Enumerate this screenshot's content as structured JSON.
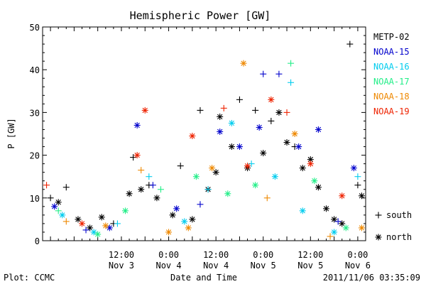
{
  "chart_data": {
    "type": "scatter",
    "title": "Hemispheric Power [GW]",
    "xlabel": "Date and Time",
    "ylabel": "P [GW]",
    "xlim": [
      "2011-11-02T16:00",
      "2011-11-06T02:00"
    ],
    "ylim": [
      0,
      50
    ],
    "yticks": [
      0,
      10,
      20,
      30,
      40,
      50
    ],
    "xticks": [
      {
        "time": "2011-11-03T12:00",
        "label1": "12:00",
        "label2": "Nov 3"
      },
      {
        "time": "2011-11-04T00:00",
        "label1": "0:00",
        "label2": "Nov 4"
      },
      {
        "time": "2011-11-04T12:00",
        "label1": "12:00",
        "label2": "Nov 4"
      },
      {
        "time": "2011-11-05T00:00",
        "label1": "0:00",
        "label2": "Nov 5"
      },
      {
        "time": "2011-11-05T12:00",
        "label1": "12:00",
        "label2": "Nov 5"
      },
      {
        "time": "2011-11-06T00:00",
        "label1": "0:00",
        "label2": "Nov 6"
      }
    ],
    "legend_position": "right",
    "marker_legend": [
      {
        "marker": "+",
        "label": "south"
      },
      {
        "marker": "*",
        "label": "north"
      }
    ],
    "series": [
      {
        "name": "METP-02",
        "color": "#000000",
        "points": [
          {
            "t": "2011-11-02T18:00",
            "v": 10,
            "m": "+"
          },
          {
            "t": "2011-11-02T20:00",
            "v": 9,
            "m": "*"
          },
          {
            "t": "2011-11-02T22:00",
            "v": 12.5,
            "m": "+"
          },
          {
            "t": "2011-11-03T01:00",
            "v": 5,
            "m": "*"
          },
          {
            "t": "2011-11-03T04:00",
            "v": 3,
            "m": "*"
          },
          {
            "t": "2011-11-03T07:00",
            "v": 5.5,
            "m": "*"
          },
          {
            "t": "2011-11-03T10:00",
            "v": 4,
            "m": "+"
          },
          {
            "t": "2011-11-03T14:00",
            "v": 11,
            "m": "*"
          },
          {
            "t": "2011-11-03T15:00",
            "v": 19.5,
            "m": "+"
          },
          {
            "t": "2011-11-03T17:00",
            "v": 12,
            "m": "*"
          },
          {
            "t": "2011-11-03T19:00",
            "v": 13,
            "m": "+"
          },
          {
            "t": "2011-11-03T21:00",
            "v": 10,
            "m": "*"
          },
          {
            "t": "2011-11-04T01:00",
            "v": 6,
            "m": "*"
          },
          {
            "t": "2011-11-04T03:00",
            "v": 17.5,
            "m": "+"
          },
          {
            "t": "2011-11-04T06:00",
            "v": 5,
            "m": "*"
          },
          {
            "t": "2011-11-04T08:00",
            "v": 30.5,
            "m": "+"
          },
          {
            "t": "2011-11-04T10:00",
            "v": 12,
            "m": "*"
          },
          {
            "t": "2011-11-04T12:00",
            "v": 16,
            "m": "*"
          },
          {
            "t": "2011-11-04T13:00",
            "v": 29,
            "m": "*"
          },
          {
            "t": "2011-11-04T16:00",
            "v": 22,
            "m": "*"
          },
          {
            "t": "2011-11-04T18:00",
            "v": 33,
            "m": "+"
          },
          {
            "t": "2011-11-04T20:00",
            "v": 17,
            "m": "*"
          },
          {
            "t": "2011-11-04T22:00",
            "v": 30.5,
            "m": "+"
          },
          {
            "t": "2011-11-05T00:00",
            "v": 20.5,
            "m": "*"
          },
          {
            "t": "2011-11-05T02:00",
            "v": 28,
            "m": "+"
          },
          {
            "t": "2011-11-05T04:00",
            "v": 30,
            "m": "*"
          },
          {
            "t": "2011-11-05T06:00",
            "v": 23,
            "m": "*"
          },
          {
            "t": "2011-11-05T08:00",
            "v": 22,
            "m": "+"
          },
          {
            "t": "2011-11-05T10:00",
            "v": 17,
            "m": "*"
          },
          {
            "t": "2011-11-05T12:00",
            "v": 19,
            "m": "*"
          },
          {
            "t": "2011-11-05T14:00",
            "v": 12.5,
            "m": "*"
          },
          {
            "t": "2011-11-05T16:00",
            "v": 7.5,
            "m": "*"
          },
          {
            "t": "2011-11-05T18:00",
            "v": 5,
            "m": "*"
          },
          {
            "t": "2011-11-05T20:00",
            "v": 4,
            "m": "*"
          },
          {
            "t": "2011-11-05T22:00",
            "v": 46,
            "m": "+"
          },
          {
            "t": "2011-11-06T00:00",
            "v": 13,
            "m": "+"
          },
          {
            "t": "2011-11-06T01:00",
            "v": 10.5,
            "m": "*"
          }
        ]
      },
      {
        "name": "NOAA-15",
        "color": "#0000cc",
        "points": [
          {
            "t": "2011-11-02T19:00",
            "v": 8,
            "m": "*"
          },
          {
            "t": "2011-11-03T03:00",
            "v": 2.5,
            "m": "+"
          },
          {
            "t": "2011-11-03T09:00",
            "v": 3,
            "m": "*"
          },
          {
            "t": "2011-11-03T16:00",
            "v": 27,
            "m": "*"
          },
          {
            "t": "2011-11-03T20:00",
            "v": 13,
            "m": "+"
          },
          {
            "t": "2011-11-04T02:00",
            "v": 7.5,
            "m": "*"
          },
          {
            "t": "2011-11-04T08:00",
            "v": 8.5,
            "m": "+"
          },
          {
            "t": "2011-11-04T13:00",
            "v": 25.5,
            "m": "*"
          },
          {
            "t": "2011-11-04T18:00",
            "v": 22,
            "m": "*"
          },
          {
            "t": "2011-11-04T23:00",
            "v": 26.5,
            "m": "*"
          },
          {
            "t": "2011-11-05T00:00",
            "v": 39,
            "m": "+"
          },
          {
            "t": "2011-11-05T04:00",
            "v": 39,
            "m": "+"
          },
          {
            "t": "2011-11-05T09:00",
            "v": 22,
            "m": "*"
          },
          {
            "t": "2011-11-05T14:00",
            "v": 26,
            "m": "*"
          },
          {
            "t": "2011-11-05T19:00",
            "v": 4.5,
            "m": "+"
          },
          {
            "t": "2011-11-05T23:00",
            "v": 17,
            "m": "*"
          }
        ]
      },
      {
        "name": "NOAA-16",
        "color": "#00ccee",
        "points": [
          {
            "t": "2011-11-02T21:00",
            "v": 6,
            "m": "*"
          },
          {
            "t": "2011-11-03T05:00",
            "v": 2,
            "m": "*"
          },
          {
            "t": "2011-11-03T11:00",
            "v": 4,
            "m": "+"
          },
          {
            "t": "2011-11-03T19:00",
            "v": 15,
            "m": "+"
          },
          {
            "t": "2011-11-04T04:00",
            "v": 4.5,
            "m": "*"
          },
          {
            "t": "2011-11-04T10:00",
            "v": 12,
            "m": "+"
          },
          {
            "t": "2011-11-04T16:00",
            "v": 27.5,
            "m": "*"
          },
          {
            "t": "2011-11-04T21:00",
            "v": 18,
            "m": "+"
          },
          {
            "t": "2011-11-05T03:00",
            "v": 15,
            "m": "*"
          },
          {
            "t": "2011-11-05T07:00",
            "v": 37,
            "m": "+"
          },
          {
            "t": "2011-11-05T10:00",
            "v": 7,
            "m": "*"
          },
          {
            "t": "2011-11-05T18:00",
            "v": 2,
            "m": "*"
          },
          {
            "t": "2011-11-06T00:00",
            "v": 15,
            "m": "+"
          }
        ]
      },
      {
        "name": "NOAA-17",
        "color": "#22ee88",
        "points": [
          {
            "t": "2011-11-02T20:00",
            "v": 7,
            "m": "+"
          },
          {
            "t": "2011-11-03T06:00",
            "v": 1.5,
            "m": "*"
          },
          {
            "t": "2011-11-03T13:00",
            "v": 7,
            "m": "*"
          },
          {
            "t": "2011-11-03T22:00",
            "v": 12,
            "m": "+"
          },
          {
            "t": "2011-11-04T07:00",
            "v": 15,
            "m": "*"
          },
          {
            "t": "2011-11-04T15:00",
            "v": 11,
            "m": "*"
          },
          {
            "t": "2011-11-04T22:00",
            "v": 13,
            "m": "*"
          },
          {
            "t": "2011-11-05T07:00",
            "v": 41.5,
            "m": "+"
          },
          {
            "t": "2011-11-05T13:00",
            "v": 14,
            "m": "*"
          },
          {
            "t": "2011-11-05T21:00",
            "v": 3,
            "m": "*"
          }
        ]
      },
      {
        "name": "NOAA-18",
        "color": "#ee8800",
        "points": [
          {
            "t": "2011-11-02T22:00",
            "v": 4.5,
            "m": "+"
          },
          {
            "t": "2011-11-03T08:00",
            "v": 3.5,
            "m": "*"
          },
          {
            "t": "2011-11-03T17:00",
            "v": 16.5,
            "m": "+"
          },
          {
            "t": "2011-11-04T00:00",
            "v": 2,
            "m": "*"
          },
          {
            "t": "2011-11-04T05:00",
            "v": 3,
            "m": "*"
          },
          {
            "t": "2011-11-04T11:00",
            "v": 17,
            "m": "*"
          },
          {
            "t": "2011-11-04T19:00",
            "v": 41.5,
            "m": "*"
          },
          {
            "t": "2011-11-05T01:00",
            "v": 10,
            "m": "+"
          },
          {
            "t": "2011-11-05T08:00",
            "v": 25,
            "m": "*"
          },
          {
            "t": "2011-11-05T17:00",
            "v": 1,
            "m": "+"
          },
          {
            "t": "2011-11-06T01:00",
            "v": 3,
            "m": "*"
          }
        ]
      },
      {
        "name": "NOAA-19",
        "color": "#ee2200",
        "points": [
          {
            "t": "2011-11-02T17:00",
            "v": 13,
            "m": "+"
          },
          {
            "t": "2011-11-03T02:00",
            "v": 4,
            "m": "*"
          },
          {
            "t": "2011-11-03T16:00",
            "v": 20,
            "m": "*"
          },
          {
            "t": "2011-11-03T18:00",
            "v": 30.5,
            "m": "*"
          },
          {
            "t": "2011-11-04T06:00",
            "v": 24.5,
            "m": "*"
          },
          {
            "t": "2011-11-04T14:00",
            "v": 31,
            "m": "+"
          },
          {
            "t": "2011-11-04T20:00",
            "v": 17.5,
            "m": "*"
          },
          {
            "t": "2011-11-05T02:00",
            "v": 33,
            "m": "*"
          },
          {
            "t": "2011-11-05T06:00",
            "v": 30,
            "m": "+"
          },
          {
            "t": "2011-11-05T12:00",
            "v": 18,
            "m": "*"
          },
          {
            "t": "2011-11-05T20:00",
            "v": 10.5,
            "m": "*"
          }
        ]
      }
    ]
  },
  "footer": {
    "left": "Plot: CCMC",
    "right": "2011/11/06 03:35:09"
  }
}
